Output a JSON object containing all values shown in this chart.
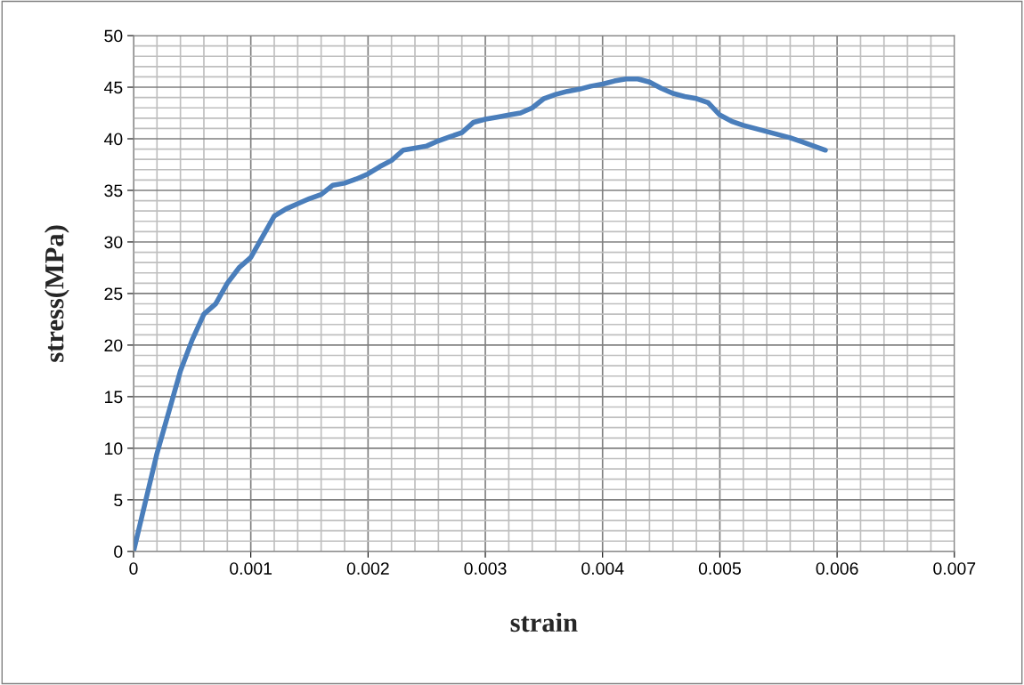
{
  "chart_data": {
    "type": "line",
    "xlabel": "strain",
    "ylabel": "stress(MPa)",
    "x": [
      0,
      0.0002,
      0.0004,
      0.0005,
      0.0006,
      0.0007,
      0.0008,
      0.0009,
      0.001,
      0.0011,
      0.0012,
      0.0013,
      0.0014,
      0.0015,
      0.0016,
      0.0017,
      0.0018,
      0.0019,
      0.002,
      0.0021,
      0.0022,
      0.0023,
      0.0024,
      0.0025,
      0.0026,
      0.0027,
      0.0028,
      0.0029,
      0.003,
      0.0031,
      0.0032,
      0.0033,
      0.0034,
      0.0035,
      0.0036,
      0.0037,
      0.0038,
      0.0039,
      0.004,
      0.0041,
      0.0042,
      0.0043,
      0.0044,
      0.0045,
      0.0046,
      0.0047,
      0.0048,
      0.0049,
      0.005,
      0.0051,
      0.0052,
      0.0053,
      0.0054,
      0.0055,
      0.0056,
      0.0057,
      0.0058,
      0.0059
    ],
    "series": [
      {
        "color": "#4a7ebb",
        "values": [
          0,
          9.5,
          17.5,
          20.5,
          23,
          24,
          26,
          27.5,
          28.5,
          30.5,
          32.5,
          33.2,
          33.7,
          34.2,
          34.6,
          35.5,
          35.7,
          36.1,
          36.6,
          37.3,
          37.9,
          38.9,
          39.1,
          39.3,
          39.8,
          40.2,
          40.6,
          41.6,
          41.9,
          42.1,
          42.3,
          42.5,
          43.0,
          43.9,
          44.3,
          44.6,
          44.8,
          45.1,
          45.3,
          45.6,
          45.8,
          45.8,
          45.5,
          44.9,
          44.4,
          44.1,
          43.9,
          43.5,
          42.3,
          41.7,
          41.3,
          41.0,
          40.7,
          40.4,
          40.1,
          39.7,
          39.3,
          38.9
        ]
      }
    ],
    "xlim": [
      0,
      0.007
    ],
    "xticks": [
      0,
      0.001,
      0.002,
      0.003,
      0.004,
      0.005,
      0.006,
      0.007
    ],
    "ylim": [
      0,
      50
    ],
    "yticks": [
      0,
      5,
      10,
      15,
      20,
      25,
      30,
      35,
      40,
      45,
      50
    ],
    "grid": true,
    "legend": false,
    "marker": "none",
    "line_style": "solid"
  }
}
